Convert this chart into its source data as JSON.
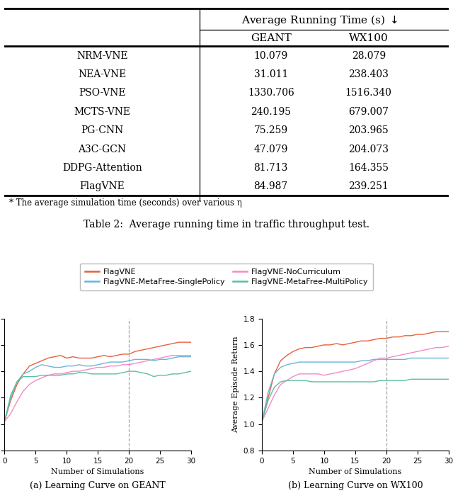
{
  "table_title": "Average Running Time (s) \\downarrow",
  "col_headers": [
    "GEANT",
    "WX100"
  ],
  "row_labels": [
    "NRM-VNE",
    "NEA-VNE",
    "PSO-VNE",
    "MCTS-VNE",
    "PG-CNN",
    "A3C-GCN",
    "DDPG-Attention",
    "FlagVNE"
  ],
  "geant_vals": [
    "10.079",
    "31.011",
    "1330.706",
    "240.195",
    "75.259",
    "47.079",
    "81.713",
    "84.987"
  ],
  "wx100_vals": [
    "28.079",
    "238.403",
    "1516.340",
    "679.007",
    "203.965",
    "204.073",
    "164.355",
    "239.251"
  ],
  "footnote": "* The average simulation time (seconds) over various η",
  "table_caption": "Table 2:  Average running time in traffic throughput test.",
  "legend_entries": [
    "FlagVNE",
    "FlagVNE-NoCurriculum",
    "FlagVNE-MetaFree-SinglePolicy",
    "FlagVNE-MetaFree-MultiPolicy"
  ],
  "line_colors": [
    "#e8603c",
    "#f589c8",
    "#6bb5d6",
    "#5cbfa0"
  ],
  "subplot_a_title": "(a) Learning Curve on GEANT",
  "subplot_b_title": "(b) Learning Curve on WX100",
  "xlabel": "Number of Simulations",
  "ylabel": "Average Episode Return",
  "xlim": [
    0,
    30
  ],
  "ylim": [
    0.8,
    1.8
  ],
  "vline_x": 20,
  "geant_flagvne": [
    1.02,
    1.18,
    1.3,
    1.38,
    1.44,
    1.46,
    1.48,
    1.5,
    1.51,
    1.52,
    1.5,
    1.51,
    1.5,
    1.5,
    1.5,
    1.51,
    1.52,
    1.51,
    1.52,
    1.53,
    1.53,
    1.55,
    1.56,
    1.57,
    1.58,
    1.59,
    1.6,
    1.61,
    1.62,
    1.62,
    1.62
  ],
  "geant_nocurriculum": [
    1.02,
    1.08,
    1.17,
    1.25,
    1.3,
    1.33,
    1.35,
    1.37,
    1.38,
    1.38,
    1.39,
    1.4,
    1.4,
    1.41,
    1.42,
    1.43,
    1.43,
    1.44,
    1.44,
    1.45,
    1.45,
    1.46,
    1.47,
    1.48,
    1.49,
    1.5,
    1.51,
    1.52,
    1.52,
    1.52,
    1.52
  ],
  "geant_metafree_single": [
    1.02,
    1.2,
    1.32,
    1.38,
    1.4,
    1.43,
    1.45,
    1.44,
    1.43,
    1.43,
    1.44,
    1.44,
    1.45,
    1.44,
    1.44,
    1.45,
    1.46,
    1.47,
    1.47,
    1.47,
    1.48,
    1.49,
    1.49,
    1.49,
    1.48,
    1.49,
    1.49,
    1.5,
    1.51,
    1.51,
    1.51
  ],
  "geant_metafree_multi": [
    1.02,
    1.22,
    1.32,
    1.36,
    1.36,
    1.36,
    1.37,
    1.37,
    1.37,
    1.37,
    1.38,
    1.38,
    1.39,
    1.39,
    1.38,
    1.38,
    1.38,
    1.38,
    1.38,
    1.39,
    1.4,
    1.4,
    1.39,
    1.38,
    1.36,
    1.37,
    1.37,
    1.38,
    1.38,
    1.39,
    1.4
  ],
  "wx100_flagvne": [
    1.02,
    1.2,
    1.38,
    1.48,
    1.52,
    1.55,
    1.57,
    1.58,
    1.58,
    1.59,
    1.6,
    1.6,
    1.61,
    1.6,
    1.61,
    1.62,
    1.63,
    1.63,
    1.64,
    1.65,
    1.65,
    1.66,
    1.66,
    1.67,
    1.67,
    1.68,
    1.68,
    1.69,
    1.7,
    1.7,
    1.7
  ],
  "wx100_nocurriculum": [
    1.02,
    1.12,
    1.22,
    1.3,
    1.33,
    1.36,
    1.38,
    1.38,
    1.38,
    1.38,
    1.37,
    1.38,
    1.39,
    1.4,
    1.41,
    1.42,
    1.44,
    1.46,
    1.48,
    1.5,
    1.5,
    1.51,
    1.52,
    1.53,
    1.54,
    1.55,
    1.56,
    1.57,
    1.58,
    1.58,
    1.59
  ],
  "wx100_metafree_single": [
    1.02,
    1.24,
    1.38,
    1.43,
    1.45,
    1.46,
    1.47,
    1.47,
    1.47,
    1.47,
    1.47,
    1.47,
    1.47,
    1.47,
    1.47,
    1.47,
    1.48,
    1.48,
    1.49,
    1.49,
    1.49,
    1.49,
    1.49,
    1.49,
    1.5,
    1.5,
    1.5,
    1.5,
    1.5,
    1.5,
    1.5
  ],
  "wx100_metafree_multi": [
    1.02,
    1.18,
    1.28,
    1.32,
    1.33,
    1.33,
    1.33,
    1.33,
    1.32,
    1.32,
    1.32,
    1.32,
    1.32,
    1.32,
    1.32,
    1.32,
    1.32,
    1.32,
    1.32,
    1.33,
    1.33,
    1.33,
    1.33,
    1.33,
    1.34,
    1.34,
    1.34,
    1.34,
    1.34,
    1.34,
    1.34
  ]
}
